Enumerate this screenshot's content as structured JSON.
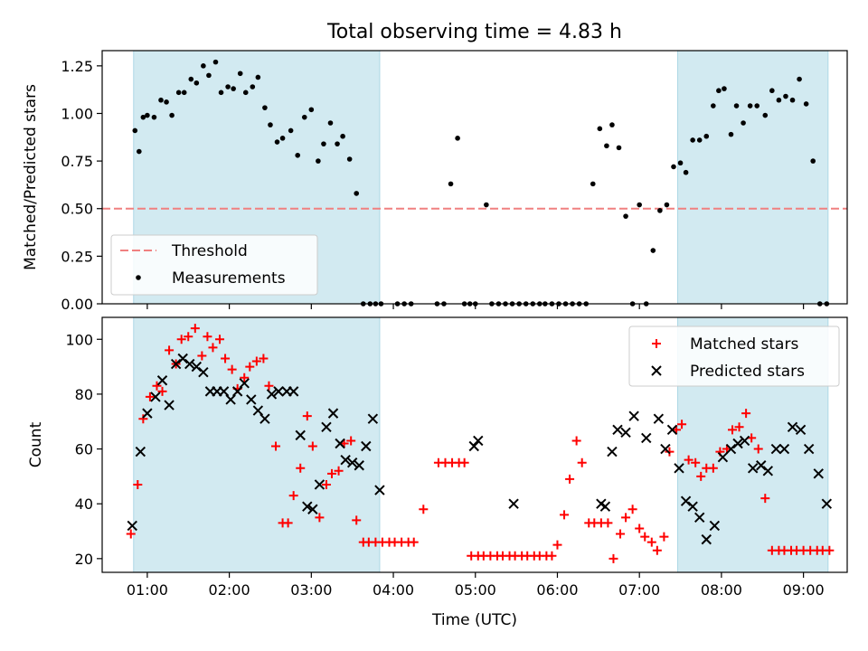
{
  "figure": {
    "title": "Total observing time = 4.83 h",
    "xlabel": "Time (UTC)"
  },
  "colors": {
    "shade": "#add8e6",
    "threshold": "#f08080",
    "measurements": "#000000",
    "matched": "#ff0000",
    "predicted": "#000000"
  },
  "chart_data": [
    {
      "type": "scatter",
      "panel": "top",
      "ylabel": "Matched/Predicted stars",
      "ylim": [
        0,
        1.33
      ],
      "xlim": [
        "00:27",
        "09:32"
      ],
      "yticks": [
        0.0,
        0.25,
        0.5,
        0.75,
        1.0,
        1.25
      ],
      "xticks": [
        "01:00",
        "02:00",
        "03:00",
        "04:00",
        "05:00",
        "06:00",
        "07:00",
        "08:00",
        "09:00"
      ],
      "shaded_intervals": [
        [
          "00:50",
          "03:50"
        ],
        [
          "07:28",
          "09:18"
        ]
      ],
      "legend_position": "lower-left",
      "threshold": {
        "name": "Threshold",
        "y": 0.5,
        "style": "dashed"
      },
      "series": [
        {
          "name": "Measurements",
          "x": [
            "00:51",
            "00:54",
            "00:57",
            "01:00",
            "01:05",
            "01:10",
            "01:14",
            "01:18",
            "01:23",
            "01:27",
            "01:32",
            "01:36",
            "01:41",
            "01:45",
            "01:50",
            "01:54",
            "01:59",
            "02:03",
            "02:08",
            "02:12",
            "02:17",
            "02:21",
            "02:26",
            "02:30",
            "02:35",
            "02:39",
            "02:45",
            "02:50",
            "02:55",
            "03:00",
            "03:05",
            "03:09",
            "03:14",
            "03:19",
            "03:23",
            "03:28",
            "03:33",
            "03:38",
            "03:43",
            "03:47",
            "03:51",
            "04:03",
            "04:08",
            "04:13",
            "04:32",
            "04:37",
            "04:42",
            "04:47",
            "04:52",
            "04:56",
            "05:00",
            "05:08",
            "05:12",
            "05:17",
            "05:22",
            "05:27",
            "05:32",
            "05:37",
            "05:42",
            "05:47",
            "05:51",
            "05:56",
            "06:01",
            "06:06",
            "06:11",
            "06:16",
            "06:21",
            "06:26",
            "06:31",
            "06:36",
            "06:40",
            "06:45",
            "06:50",
            "06:55",
            "07:00",
            "07:05",
            "07:10",
            "07:15",
            "07:20",
            "07:25",
            "07:30",
            "07:34",
            "07:39",
            "07:44",
            "07:49",
            "07:54",
            "07:58",
            "08:02",
            "08:07",
            "08:11",
            "08:16",
            "08:21",
            "08:26",
            "08:32",
            "08:37",
            "08:42",
            "08:47",
            "08:52",
            "08:57",
            "09:02",
            "09:07",
            "09:12",
            "09:17"
          ],
          "y": [
            0.91,
            0.8,
            0.98,
            0.99,
            0.98,
            1.07,
            1.06,
            0.99,
            1.11,
            1.11,
            1.18,
            1.16,
            1.25,
            1.2,
            1.27,
            1.11,
            1.14,
            1.13,
            1.21,
            1.11,
            1.14,
            1.19,
            1.03,
            0.94,
            0.85,
            0.87,
            0.91,
            0.78,
            0.98,
            1.02,
            0.75,
            0.84,
            0.95,
            0.84,
            0.88,
            0.76,
            0.58,
            0.0,
            0.0,
            0.0,
            0.0,
            0.0,
            0.0,
            0.0,
            0.0,
            0.0,
            0.63,
            0.87,
            0.0,
            0.0,
            0.0,
            0.52,
            0.0,
            0.0,
            0.0,
            0.0,
            0.0,
            0.0,
            0.0,
            0.0,
            0.0,
            0.0,
            0.0,
            0.0,
            0.0,
            0.0,
            0.0,
            0.63,
            0.92,
            0.83,
            0.94,
            0.82,
            0.46,
            0.0,
            0.52,
            0.0,
            0.28,
            0.49,
            0.52,
            0.72,
            0.74,
            0.69,
            0.86,
            0.86,
            0.88,
            1.04,
            1.12,
            1.13,
            0.89,
            1.04,
            0.95,
            1.04,
            1.04,
            0.99,
            1.12,
            1.07,
            1.09,
            1.07,
            1.18,
            1.05,
            0.75,
            0.0,
            0.0
          ]
        }
      ]
    },
    {
      "type": "scatter",
      "panel": "bottom",
      "ylabel": "Count",
      "ylim": [
        15,
        108
      ],
      "xlim": [
        "00:27",
        "09:32"
      ],
      "yticks": [
        20,
        40,
        60,
        80,
        100
      ],
      "xticks": [
        "01:00",
        "02:00",
        "03:00",
        "04:00",
        "05:00",
        "06:00",
        "07:00",
        "08:00",
        "09:00"
      ],
      "shaded_intervals": [
        [
          "00:50",
          "03:50"
        ],
        [
          "07:28",
          "09:18"
        ]
      ],
      "legend_position": "upper-right",
      "series": [
        {
          "name": "Matched stars",
          "marker": "plus",
          "x": [
            "00:48",
            "00:53",
            "00:57",
            "01:02",
            "01:07",
            "01:11",
            "01:16",
            "01:21",
            "01:25",
            "01:30",
            "01:35",
            "01:40",
            "01:44",
            "01:48",
            "01:53",
            "01:57",
            "02:02",
            "02:06",
            "02:11",
            "02:15",
            "02:20",
            "02:25",
            "02:29",
            "02:34",
            "02:39",
            "02:43",
            "02:47",
            "02:52",
            "02:57",
            "03:01",
            "03:06",
            "03:11",
            "03:15",
            "03:20",
            "03:24",
            "03:29",
            "03:33",
            "03:38",
            "03:42",
            "03:47",
            "03:52",
            "03:57",
            "04:01",
            "04:06",
            "04:11",
            "04:15",
            "04:22",
            "04:33",
            "04:38",
            "04:43",
            "04:48",
            "04:52",
            "04:57",
            "05:02",
            "05:06",
            "05:11",
            "05:16",
            "05:20",
            "05:25",
            "05:29",
            "05:34",
            "05:38",
            "05:43",
            "05:47",
            "05:52",
            "05:56",
            "06:00",
            "06:05",
            "06:09",
            "06:14",
            "06:18",
            "06:23",
            "06:27",
            "06:32",
            "06:37",
            "06:41",
            "06:46",
            "06:50",
            "06:55",
            "07:00",
            "07:04",
            "07:09",
            "07:13",
            "07:18",
            "07:22",
            "07:27",
            "07:31",
            "07:36",
            "07:41",
            "07:45",
            "07:49",
            "07:54",
            "07:59",
            "08:04",
            "08:08",
            "08:13",
            "08:18",
            "08:22",
            "08:27",
            "08:32",
            "08:37",
            "08:42",
            "08:46",
            "08:51",
            "08:55",
            "09:00",
            "09:05",
            "09:10",
            "09:14",
            "09:19"
          ],
          "y": [
            29,
            47,
            71,
            79,
            83,
            81,
            96,
            91,
            100,
            101,
            104,
            94,
            101,
            97,
            100,
            93,
            89,
            82,
            86,
            90,
            92,
            93,
            83,
            61,
            33,
            33,
            43,
            53,
            72,
            61,
            35,
            47,
            51,
            52,
            62,
            63,
            34,
            26,
            26,
            26,
            26,
            26,
            26,
            26,
            26,
            26,
            38,
            55,
            55,
            55,
            55,
            55,
            21,
            21,
            21,
            21,
            21,
            21,
            21,
            21,
            21,
            21,
            21,
            21,
            21,
            21,
            25,
            36,
            49,
            63,
            55,
            33,
            33,
            33,
            33,
            20,
            29,
            35,
            38,
            31,
            28,
            26,
            23,
            28,
            59,
            67,
            69,
            56,
            55,
            50,
            53,
            53,
            59,
            60,
            67,
            68,
            73,
            64,
            60,
            42,
            23,
            23,
            23,
            23,
            23,
            23,
            23,
            23,
            23,
            23
          ]
        },
        {
          "name": "Predicted stars",
          "marker": "x",
          "x": [
            "00:49",
            "00:55",
            "01:00",
            "01:06",
            "01:11",
            "01:16",
            "01:21",
            "01:26",
            "01:31",
            "01:36",
            "01:41",
            "01:46",
            "01:51",
            "01:56",
            "02:01",
            "02:06",
            "02:11",
            "02:16",
            "02:21",
            "02:26",
            "02:31",
            "02:36",
            "02:42",
            "02:47",
            "02:52",
            "02:57",
            "03:01",
            "03:06",
            "03:11",
            "03:16",
            "03:21",
            "03:25",
            "03:30",
            "03:35",
            "03:40",
            "03:45",
            "03:50",
            "04:59",
            "05:02",
            "05:28",
            "06:32",
            "06:35",
            "06:40",
            "06:44",
            "06:50",
            "06:56",
            "07:05",
            "07:14",
            "07:19",
            "07:24",
            "07:29",
            "07:34",
            "07:39",
            "07:44",
            "07:49",
            "07:55",
            "08:01",
            "08:07",
            "08:12",
            "08:17",
            "08:23",
            "08:29",
            "08:34",
            "08:40",
            "08:46",
            "08:52",
            "08:58",
            "09:04",
            "09:11",
            "09:17"
          ],
          "y": [
            32,
            59,
            73,
            79,
            85,
            76,
            91,
            93,
            91,
            90,
            88,
            81,
            81,
            81,
            78,
            81,
            84,
            78,
            74,
            71,
            80,
            81,
            81,
            81,
            65,
            39,
            38,
            47,
            68,
            73,
            62,
            56,
            55,
            54,
            61,
            71,
            45,
            61,
            63,
            40,
            40,
            39,
            59,
            67,
            66,
            72,
            64,
            71,
            60,
            67,
            53,
            41,
            39,
            35,
            27,
            32,
            57,
            60,
            62,
            63,
            53,
            54,
            52,
            60,
            60,
            68,
            67,
            60,
            51,
            40
          ]
        }
      ]
    }
  ]
}
